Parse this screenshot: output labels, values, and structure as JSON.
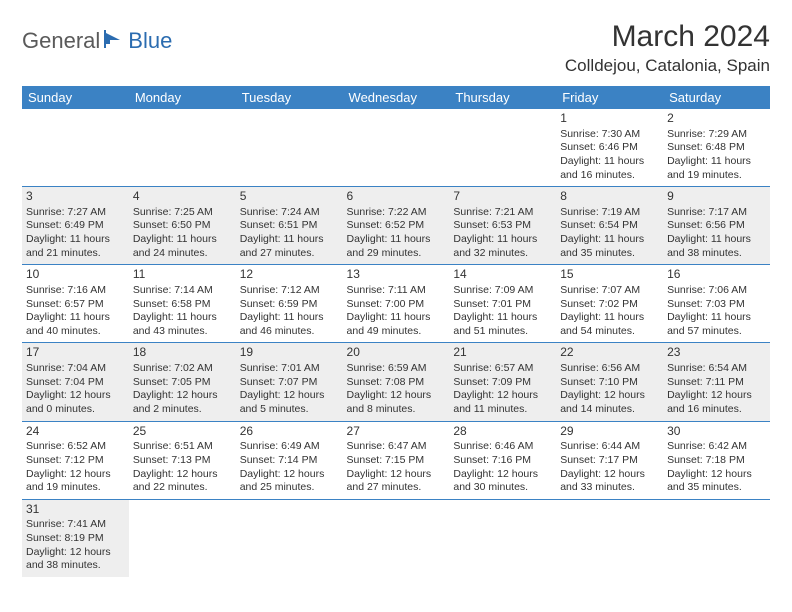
{
  "logo": {
    "part1": "General",
    "part2": "Blue"
  },
  "title": "March 2024",
  "location": "Colldejou, Catalonia, Spain",
  "colors": {
    "header_bg": "#3b82c4",
    "header_fg": "#ffffff",
    "row_alt_bg": "#eeeeee",
    "logo_gray": "#5a5a5a",
    "logo_blue": "#2b6cb0"
  },
  "day_headers": [
    "Sunday",
    "Monday",
    "Tuesday",
    "Wednesday",
    "Thursday",
    "Friday",
    "Saturday"
  ],
  "weeks": [
    [
      null,
      null,
      null,
      null,
      null,
      {
        "n": "1",
        "sr": "Sunrise: 7:30 AM",
        "ss": "Sunset: 6:46 PM",
        "dl": "Daylight: 11 hours and 16 minutes."
      },
      {
        "n": "2",
        "sr": "Sunrise: 7:29 AM",
        "ss": "Sunset: 6:48 PM",
        "dl": "Daylight: 11 hours and 19 minutes."
      }
    ],
    [
      {
        "n": "3",
        "sr": "Sunrise: 7:27 AM",
        "ss": "Sunset: 6:49 PM",
        "dl": "Daylight: 11 hours and 21 minutes."
      },
      {
        "n": "4",
        "sr": "Sunrise: 7:25 AM",
        "ss": "Sunset: 6:50 PM",
        "dl": "Daylight: 11 hours and 24 minutes."
      },
      {
        "n": "5",
        "sr": "Sunrise: 7:24 AM",
        "ss": "Sunset: 6:51 PM",
        "dl": "Daylight: 11 hours and 27 minutes."
      },
      {
        "n": "6",
        "sr": "Sunrise: 7:22 AM",
        "ss": "Sunset: 6:52 PM",
        "dl": "Daylight: 11 hours and 29 minutes."
      },
      {
        "n": "7",
        "sr": "Sunrise: 7:21 AM",
        "ss": "Sunset: 6:53 PM",
        "dl": "Daylight: 11 hours and 32 minutes."
      },
      {
        "n": "8",
        "sr": "Sunrise: 7:19 AM",
        "ss": "Sunset: 6:54 PM",
        "dl": "Daylight: 11 hours and 35 minutes."
      },
      {
        "n": "9",
        "sr": "Sunrise: 7:17 AM",
        "ss": "Sunset: 6:56 PM",
        "dl": "Daylight: 11 hours and 38 minutes."
      }
    ],
    [
      {
        "n": "10",
        "sr": "Sunrise: 7:16 AM",
        "ss": "Sunset: 6:57 PM",
        "dl": "Daylight: 11 hours and 40 minutes."
      },
      {
        "n": "11",
        "sr": "Sunrise: 7:14 AM",
        "ss": "Sunset: 6:58 PM",
        "dl": "Daylight: 11 hours and 43 minutes."
      },
      {
        "n": "12",
        "sr": "Sunrise: 7:12 AM",
        "ss": "Sunset: 6:59 PM",
        "dl": "Daylight: 11 hours and 46 minutes."
      },
      {
        "n": "13",
        "sr": "Sunrise: 7:11 AM",
        "ss": "Sunset: 7:00 PM",
        "dl": "Daylight: 11 hours and 49 minutes."
      },
      {
        "n": "14",
        "sr": "Sunrise: 7:09 AM",
        "ss": "Sunset: 7:01 PM",
        "dl": "Daylight: 11 hours and 51 minutes."
      },
      {
        "n": "15",
        "sr": "Sunrise: 7:07 AM",
        "ss": "Sunset: 7:02 PM",
        "dl": "Daylight: 11 hours and 54 minutes."
      },
      {
        "n": "16",
        "sr": "Sunrise: 7:06 AM",
        "ss": "Sunset: 7:03 PM",
        "dl": "Daylight: 11 hours and 57 minutes."
      }
    ],
    [
      {
        "n": "17",
        "sr": "Sunrise: 7:04 AM",
        "ss": "Sunset: 7:04 PM",
        "dl": "Daylight: 12 hours and 0 minutes."
      },
      {
        "n": "18",
        "sr": "Sunrise: 7:02 AM",
        "ss": "Sunset: 7:05 PM",
        "dl": "Daylight: 12 hours and 2 minutes."
      },
      {
        "n": "19",
        "sr": "Sunrise: 7:01 AM",
        "ss": "Sunset: 7:07 PM",
        "dl": "Daylight: 12 hours and 5 minutes."
      },
      {
        "n": "20",
        "sr": "Sunrise: 6:59 AM",
        "ss": "Sunset: 7:08 PM",
        "dl": "Daylight: 12 hours and 8 minutes."
      },
      {
        "n": "21",
        "sr": "Sunrise: 6:57 AM",
        "ss": "Sunset: 7:09 PM",
        "dl": "Daylight: 12 hours and 11 minutes."
      },
      {
        "n": "22",
        "sr": "Sunrise: 6:56 AM",
        "ss": "Sunset: 7:10 PM",
        "dl": "Daylight: 12 hours and 14 minutes."
      },
      {
        "n": "23",
        "sr": "Sunrise: 6:54 AM",
        "ss": "Sunset: 7:11 PM",
        "dl": "Daylight: 12 hours and 16 minutes."
      }
    ],
    [
      {
        "n": "24",
        "sr": "Sunrise: 6:52 AM",
        "ss": "Sunset: 7:12 PM",
        "dl": "Daylight: 12 hours and 19 minutes."
      },
      {
        "n": "25",
        "sr": "Sunrise: 6:51 AM",
        "ss": "Sunset: 7:13 PM",
        "dl": "Daylight: 12 hours and 22 minutes."
      },
      {
        "n": "26",
        "sr": "Sunrise: 6:49 AM",
        "ss": "Sunset: 7:14 PM",
        "dl": "Daylight: 12 hours and 25 minutes."
      },
      {
        "n": "27",
        "sr": "Sunrise: 6:47 AM",
        "ss": "Sunset: 7:15 PM",
        "dl": "Daylight: 12 hours and 27 minutes."
      },
      {
        "n": "28",
        "sr": "Sunrise: 6:46 AM",
        "ss": "Sunset: 7:16 PM",
        "dl": "Daylight: 12 hours and 30 minutes."
      },
      {
        "n": "29",
        "sr": "Sunrise: 6:44 AM",
        "ss": "Sunset: 7:17 PM",
        "dl": "Daylight: 12 hours and 33 minutes."
      },
      {
        "n": "30",
        "sr": "Sunrise: 6:42 AM",
        "ss": "Sunset: 7:18 PM",
        "dl": "Daylight: 12 hours and 35 minutes."
      }
    ],
    [
      {
        "n": "31",
        "sr": "Sunrise: 7:41 AM",
        "ss": "Sunset: 8:19 PM",
        "dl": "Daylight: 12 hours and 38 minutes."
      },
      null,
      null,
      null,
      null,
      null,
      null
    ]
  ]
}
